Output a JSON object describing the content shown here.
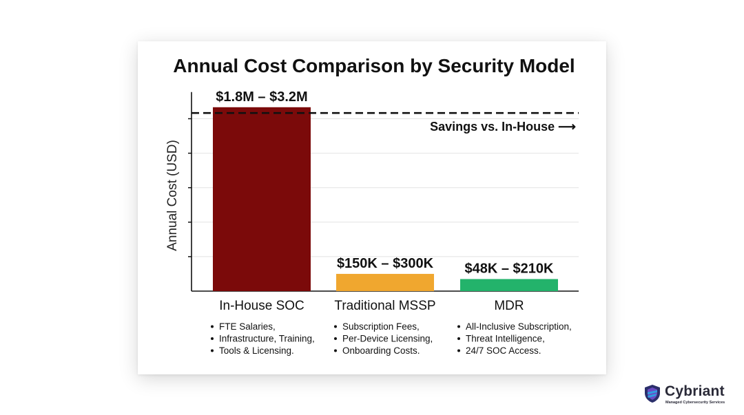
{
  "chart_data": {
    "type": "bar",
    "title": "Annual Cost Comparison by Security Model",
    "ylabel": "Annual Cost (USD)",
    "xlabel": "",
    "ylim": [
      0,
      3.5
    ],
    "grid": true,
    "categories": [
      "In-House SOC",
      "Traditional MSSP",
      "MDR"
    ],
    "values": [
      3.2,
      0.3,
      0.21
    ],
    "ranges": [
      {
        "min": 1.8,
        "max": 3.2
      },
      {
        "min": 0.15,
        "max": 0.3
      },
      {
        "min": 0.048,
        "max": 0.21
      }
    ],
    "value_unit": "USD millions",
    "data_labels": [
      "$1.8M – $3.2M",
      "$150K – $300K",
      "$48K – $210K"
    ],
    "colors": [
      "#7b0a0a",
      "#f0a72f",
      "#23b36b"
    ],
    "descriptions": [
      [
        "FTE Salaries,",
        "Infrastructure, Training,",
        "Tools & Licensing."
      ],
      [
        "Subscription Fees,",
        "Per-Device Licensing,",
        "Onboarding Costs."
      ],
      [
        "All-Inclusive Subscription,",
        "Threat Intelligence,",
        "24/7 SOC Access."
      ]
    ],
    "reference_line": {
      "value": 3.1,
      "style": "dashed",
      "label": "Savings vs. In-House ⟶"
    }
  },
  "brand": {
    "name": "Cybriant",
    "tagline": "Managed Cybersecurity Services",
    "logo_icon": "shield-icon",
    "colors": [
      "#2b2f6b",
      "#6a4bc4",
      "#2f9fe0"
    ]
  }
}
